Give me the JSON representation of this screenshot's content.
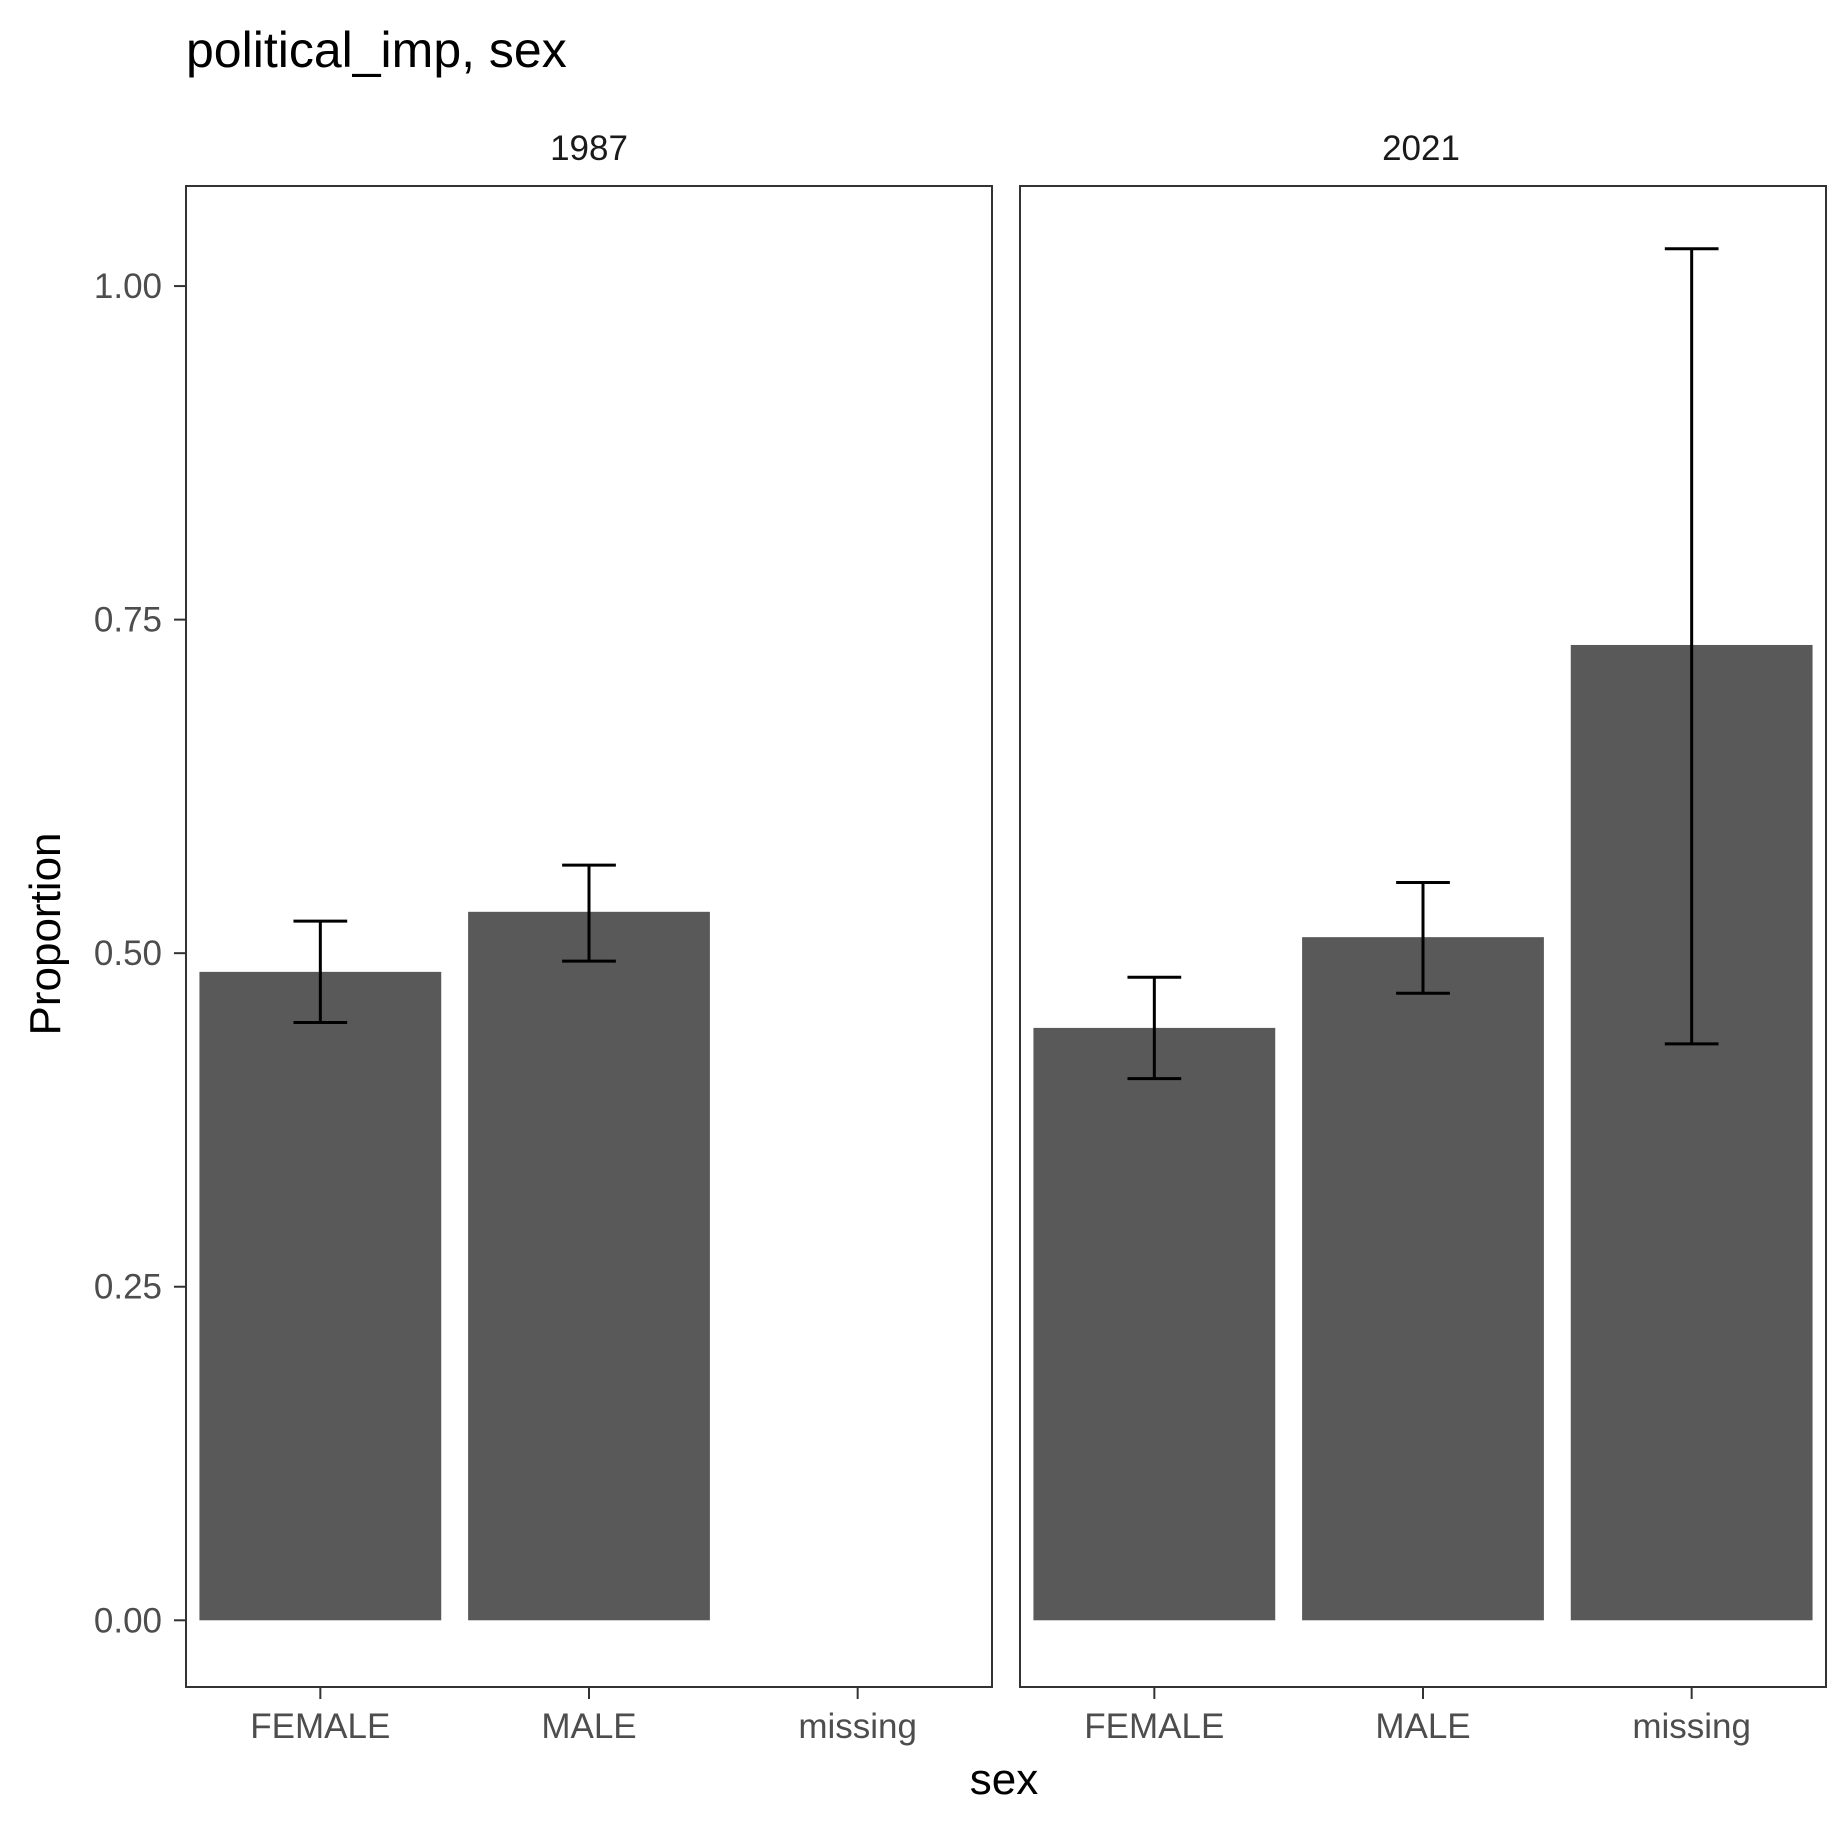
{
  "chart_data": {
    "type": "bar",
    "title": "political_imp, sex",
    "xlabel": "sex",
    "ylabel": "Proportion",
    "ylim": [
      -0.05,
      1.075
    ],
    "yticks": [
      "0.00",
      "0.25",
      "0.50",
      "0.75",
      "1.00"
    ],
    "ytick_values": [
      0,
      0.25,
      0.5,
      0.75,
      1.0
    ],
    "categories": [
      "FEMALE",
      "MALE",
      "missing"
    ],
    "grid": false,
    "bar_color": "#595959",
    "facets": [
      {
        "label": "1987",
        "values": [
          0.486,
          0.531,
          null
        ],
        "error_low": [
          0.448,
          0.494,
          null
        ],
        "error_high": [
          0.524,
          0.566,
          null
        ]
      },
      {
        "label": "2021",
        "values": [
          0.444,
          0.512,
          0.731
        ],
        "error_low": [
          0.406,
          0.47,
          0.432
        ],
        "error_high": [
          0.482,
          0.553,
          1.028
        ]
      }
    ]
  }
}
